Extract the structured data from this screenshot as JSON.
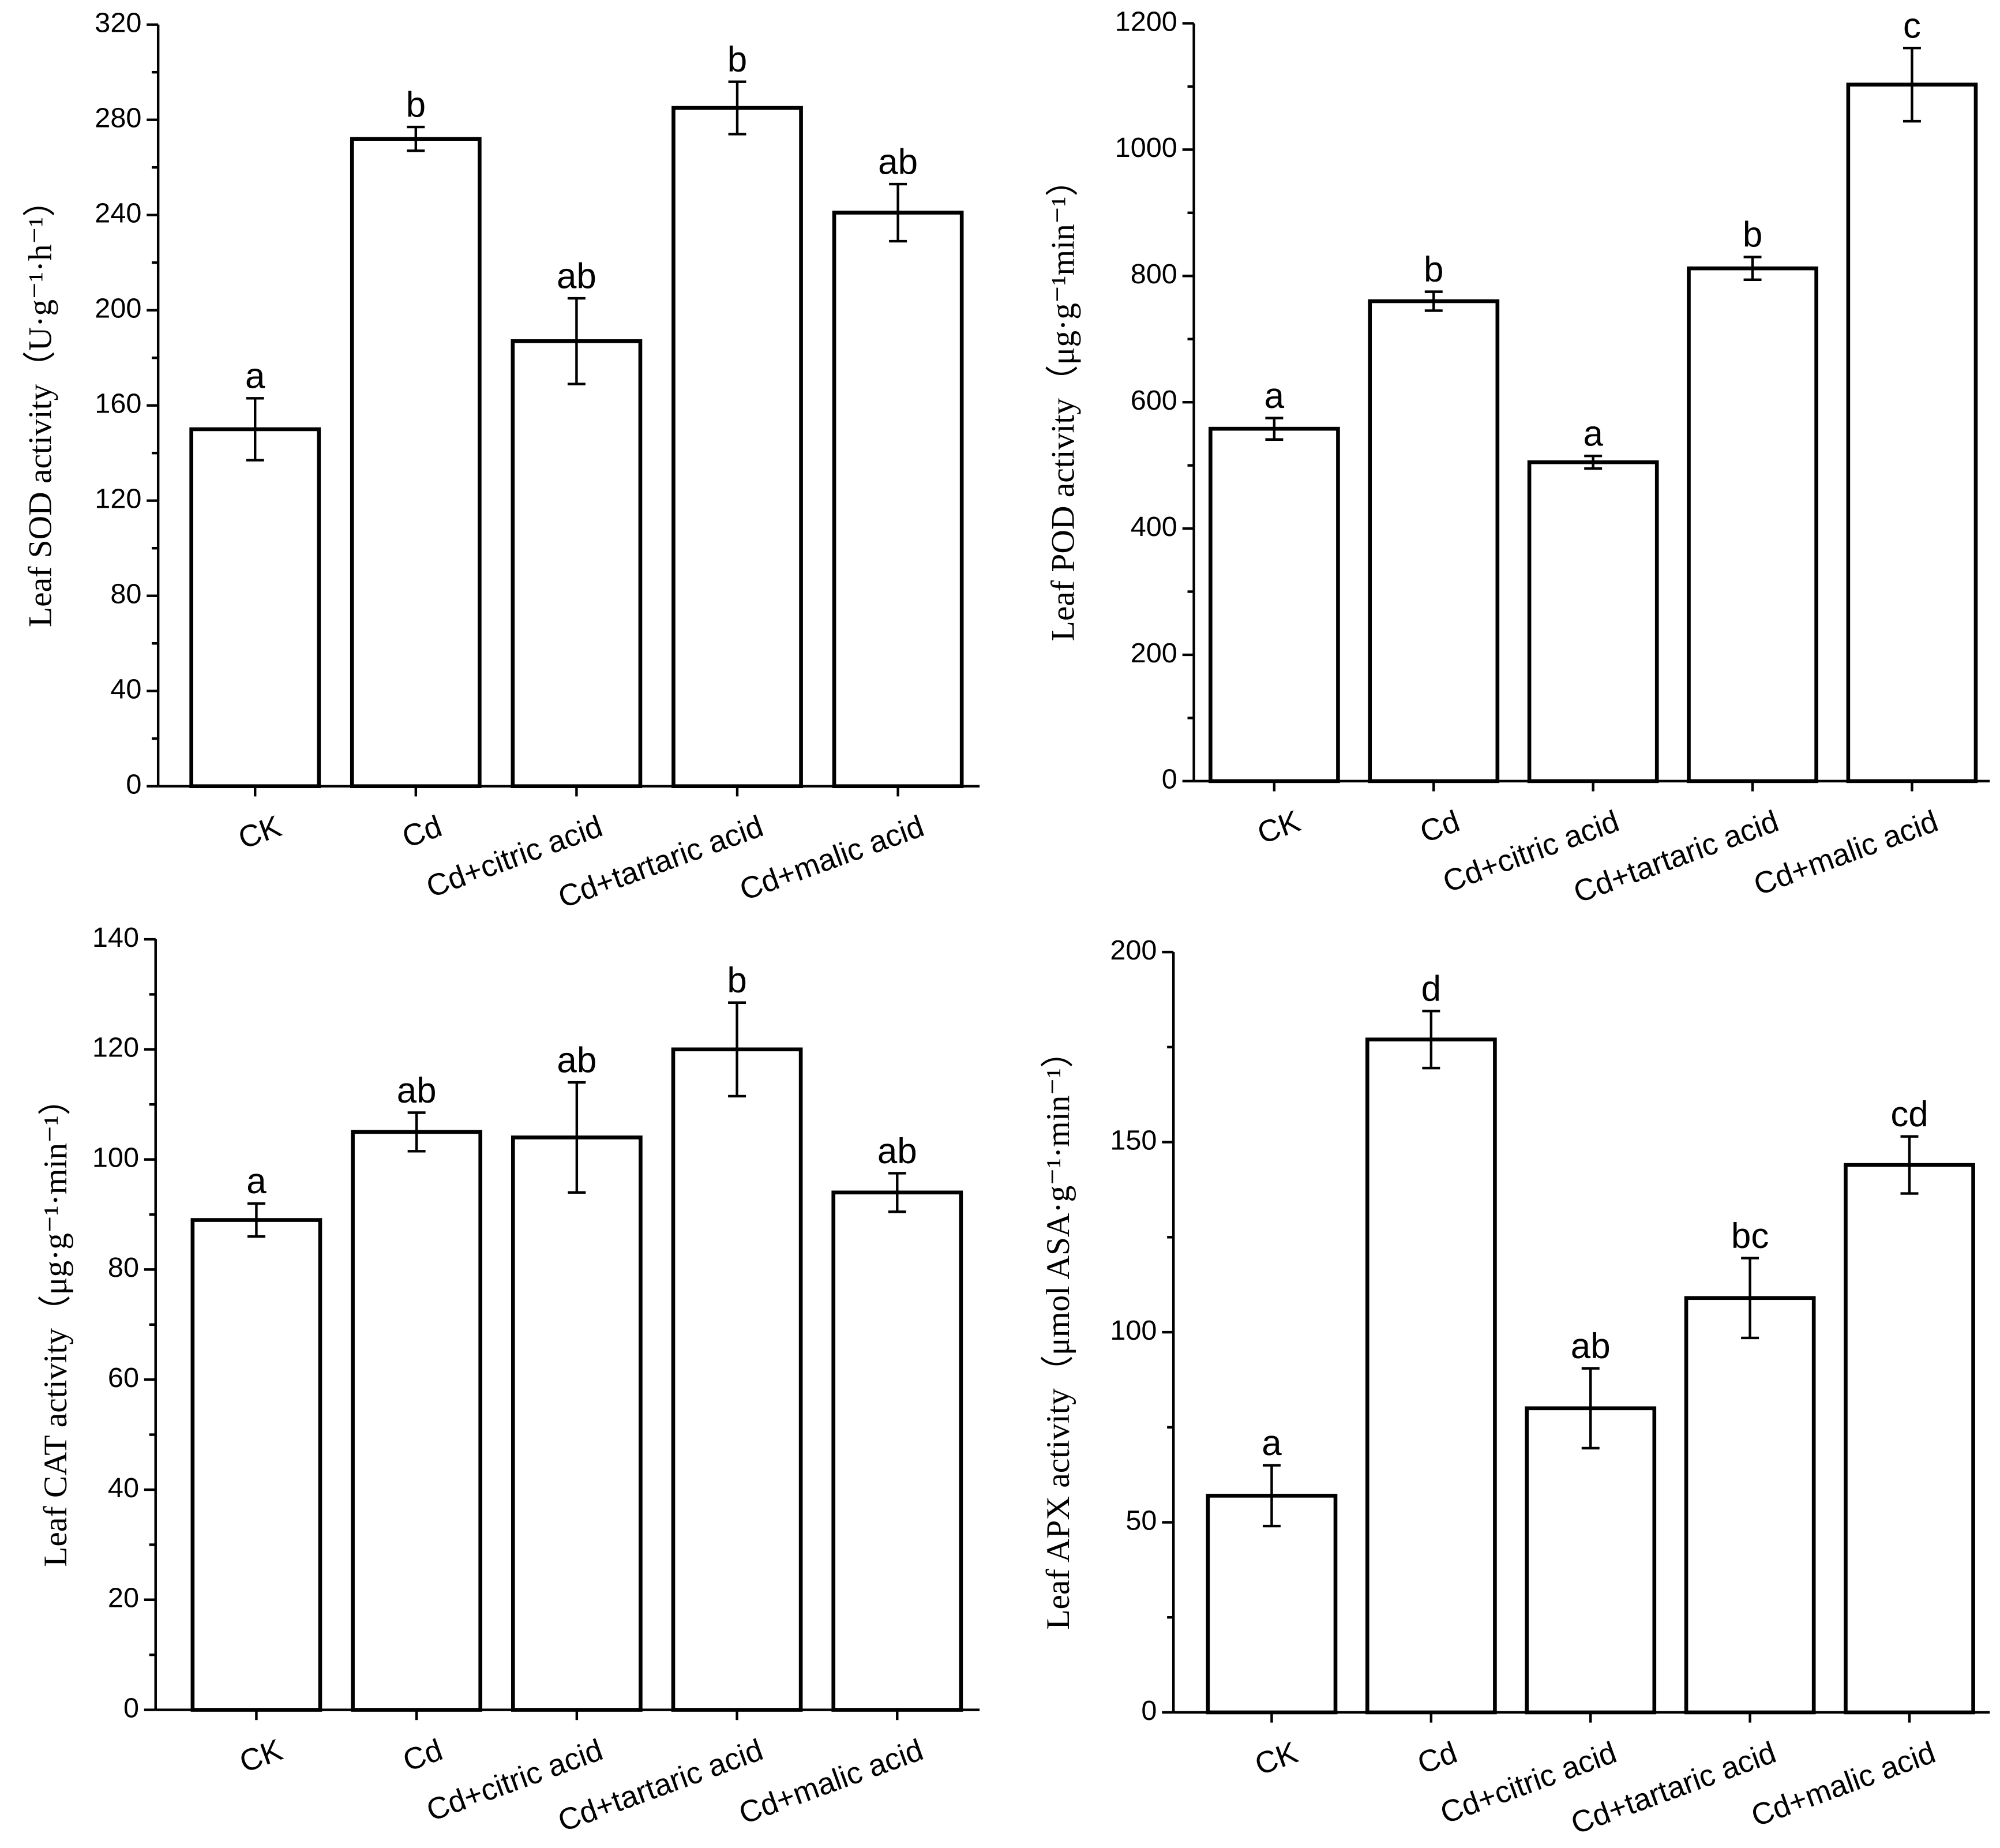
{
  "chart_data": [
    {
      "type": "bar",
      "y_label": "Leaf  SOD activity（U·g⁻¹·h⁻¹）",
      "categories": [
        "CK",
        "Cd",
        "Cd+citric acid",
        "Cd+tartaric acid",
        "Cd+malic acid"
      ],
      "values": [
        150,
        272,
        187,
        285,
        241
      ],
      "errors": [
        13,
        5,
        18,
        11,
        12
      ],
      "annotations": [
        "a",
        "b",
        "ab",
        "b",
        "ab"
      ],
      "color": "#ffffff",
      "ylim": [
        0,
        320
      ],
      "yticks": [
        0,
        40,
        80,
        120,
        160,
        200,
        240,
        280,
        320
      ]
    },
    {
      "type": "bar",
      "y_label": "Leaf POD activity（μg·g⁻¹min⁻¹）",
      "categories": [
        "CK",
        "Cd",
        "Cd+citric acid",
        "Cd+tartaric acid",
        "Cd+malic acid"
      ],
      "values": [
        558,
        760,
        505,
        812,
        1103
      ],
      "errors": [
        17,
        15,
        10,
        18,
        58
      ],
      "annotations": [
        "a",
        "b",
        "a",
        "b",
        "c"
      ],
      "color": "#ffffff",
      "ylim": [
        0,
        1200
      ],
      "yticks": [
        0,
        200,
        400,
        600,
        800,
        1000,
        1200
      ]
    },
    {
      "type": "bar",
      "y_label": "Leaf CAT activity（μg·g⁻¹·min⁻¹）",
      "categories": [
        "CK",
        "Cd",
        "Cd+citric acid",
        "Cd+tartaric acid",
        "Cd+malic acid"
      ],
      "values": [
        89,
        105,
        104,
        120,
        94
      ],
      "errors": [
        3,
        3.5,
        10,
        8.5,
        3.5
      ],
      "annotations": [
        "a",
        "ab",
        "ab",
        "b",
        "ab"
      ],
      "color": "#ffffff",
      "ylim": [
        0,
        140
      ],
      "yticks": [
        0,
        20,
        40,
        60,
        80,
        100,
        120,
        140
      ]
    },
    {
      "type": "bar",
      "y_label": "Leaf APX activity（μmol ASA·g⁻¹·min⁻¹）",
      "categories": [
        "CK",
        "Cd",
        "Cd+citric acid",
        "Cd+tartaric acid",
        "Cd+malic acid"
      ],
      "values": [
        57,
        177,
        80,
        109,
        144
      ],
      "errors": [
        8,
        7.5,
        10.5,
        10.5,
        7.5
      ],
      "annotations": [
        "a",
        "d",
        "ab",
        "bc",
        "cd"
      ],
      "color": "#ffffff",
      "ylim": [
        0,
        200
      ],
      "yticks": [
        0,
        50,
        100,
        150,
        200
      ]
    }
  ]
}
